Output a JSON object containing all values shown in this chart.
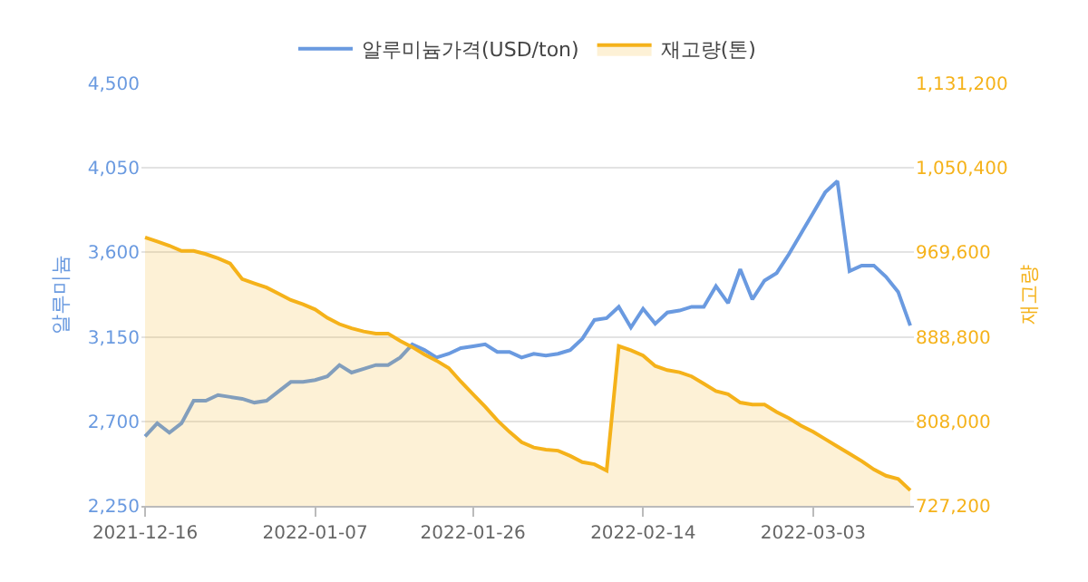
{
  "chart_data": {
    "type": "line",
    "ylabel": "알루미늄",
    "y2label": "재고량",
    "categories": [
      "2021-12-16",
      null,
      null,
      null,
      null,
      null,
      null,
      null,
      null,
      null,
      null,
      null,
      null,
      null,
      "2022-01-07",
      null,
      null,
      null,
      null,
      null,
      null,
      null,
      null,
      null,
      null,
      null,
      null,
      "2022-01-26",
      null,
      null,
      null,
      null,
      null,
      null,
      null,
      null,
      null,
      null,
      null,
      null,
      null,
      "2022-02-14",
      null,
      null,
      null,
      null,
      null,
      null,
      null,
      null,
      null,
      null,
      null,
      null,
      null,
      "2022-03-03",
      null,
      null,
      null,
      null,
      null,
      null,
      null,
      null
    ],
    "series": [
      {
        "name": "알루미늄가격(USD/ton)",
        "color": "#6a9ae0",
        "values": [
          2620,
          2690,
          2640,
          2690,
          2810,
          2810,
          2840,
          2830,
          2820,
          2800,
          2810,
          2860,
          2910,
          2910,
          2920,
          2940,
          3000,
          2960,
          2980,
          3000,
          3000,
          3040,
          3110,
          3080,
          3040,
          3060,
          3090,
          3100,
          3110,
          3070,
          3070,
          3040,
          3060,
          3050,
          3060,
          3080,
          3140,
          3240,
          3250,
          3310,
          3200,
          3300,
          3220,
          3280,
          3290,
          3310,
          3310,
          3420,
          3330,
          3510,
          3350,
          3450,
          3490,
          3590,
          3700,
          3810,
          3920,
          3980,
          3500,
          3530,
          3530,
          3470,
          3390,
          3210
        ]
      },
      {
        "name": "재고량(톤)",
        "type": "area",
        "axis": "y2",
        "color": "#f5b21a",
        "values": [
          984000,
          980000,
          976000,
          971000,
          971000,
          968000,
          964000,
          959000,
          944000,
          940000,
          936000,
          930000,
          924000,
          920000,
          915000,
          907000,
          901000,
          897000,
          894000,
          892000,
          892000,
          885000,
          879000,
          872000,
          866000,
          859000,
          846000,
          834000,
          822000,
          809000,
          798000,
          788000,
          783000,
          781000,
          780000,
          775000,
          769000,
          767000,
          761000,
          880000,
          876000,
          871000,
          861000,
          857000,
          855000,
          851000,
          844000,
          837000,
          834000,
          826000,
          824000,
          824000,
          817000,
          811000,
          804000,
          798000,
          791000,
          784000,
          777000,
          770000,
          762000,
          756000,
          753000,
          742000
        ]
      }
    ],
    "ylim": [
      2250,
      4500
    ],
    "yticks": [
      {
        "value": 2250,
        "label": "2,250"
      },
      {
        "value": 2700,
        "label": "2,700"
      },
      {
        "value": 3150,
        "label": "3,150"
      },
      {
        "value": 3600,
        "label": "3,600"
      },
      {
        "value": 4050,
        "label": "4,050"
      },
      {
        "value": 4500,
        "label": "4,500"
      }
    ],
    "y2lim": [
      727200,
      1131200
    ],
    "y2ticks": [
      {
        "value": 727200,
        "label": "727,200"
      },
      {
        "value": 808000,
        "label": "808,000"
      },
      {
        "value": 888800,
        "label": "888,800"
      },
      {
        "value": 969600,
        "label": "969,600"
      },
      {
        "value": 1050400,
        "label": "1,050,400"
      },
      {
        "value": 1131200,
        "label": "1,131,200"
      }
    ],
    "grid": "y",
    "legend": "top",
    "marker": "none"
  }
}
